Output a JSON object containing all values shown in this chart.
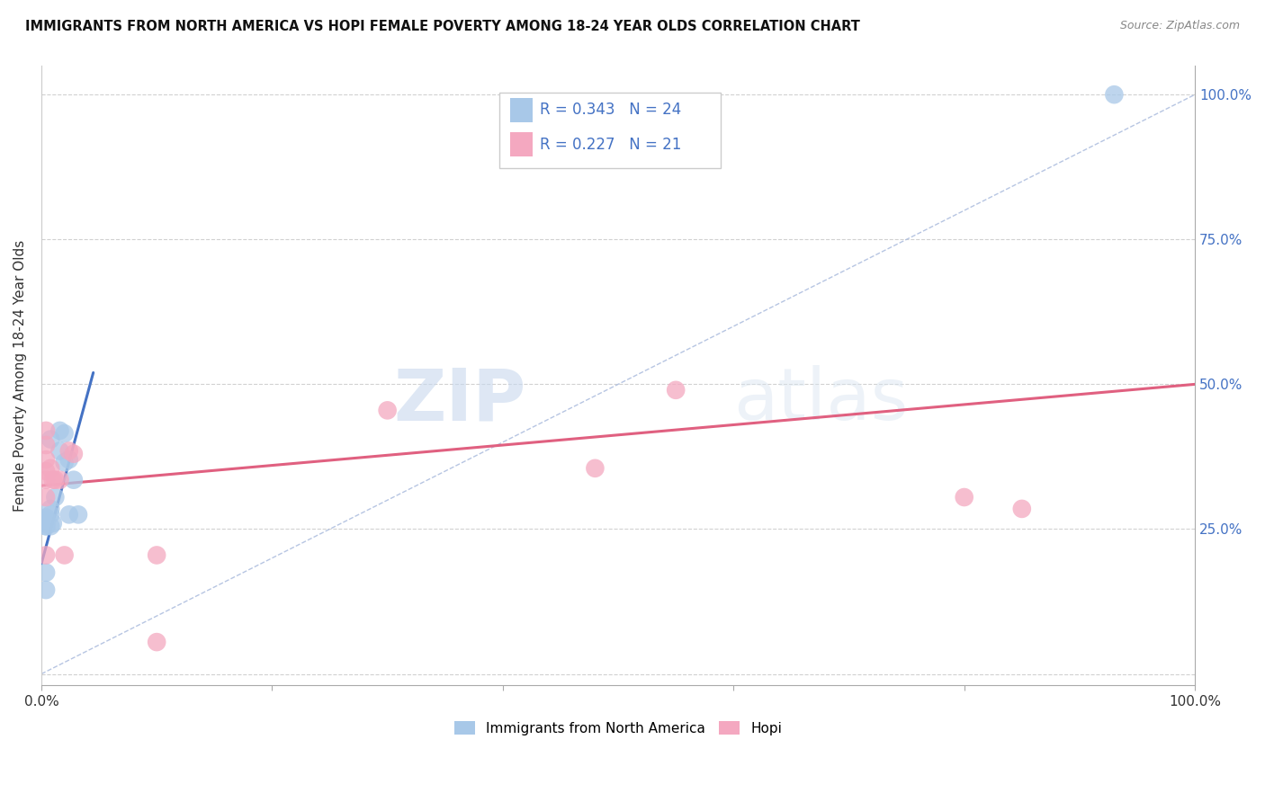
{
  "title": "IMMIGRANTS FROM NORTH AMERICA VS HOPI FEMALE POVERTY AMONG 18-24 YEAR OLDS CORRELATION CHART",
  "source": "Source: ZipAtlas.com",
  "ylabel": "Female Poverty Among 18-24 Year Olds",
  "legend_blue_label": "Immigrants from North America",
  "legend_pink_label": "Hopi",
  "watermark_zip": "ZIP",
  "watermark_atlas": "atlas",
  "blue_color": "#a8c8e8",
  "pink_color": "#f4a8c0",
  "blue_line_color": "#4472c4",
  "pink_line_color": "#e06080",
  "diag_line_color": "#aabbdd",
  "text_color_blue": "#4472c4",
  "r_blue": "0.343",
  "n_blue": "24",
  "r_pink": "0.227",
  "n_pink": "21",
  "blue_scatter_x": [
    0.008,
    0.008,
    0.004,
    0.004,
    0.004,
    0.008,
    0.01,
    0.012,
    0.016,
    0.02,
    0.008,
    0.016,
    0.02,
    0.024,
    0.028,
    0.024,
    0.032,
    0.004,
    0.004,
    0.004,
    0.004,
    0.004,
    0.004,
    0.93
  ],
  "blue_scatter_y": [
    0.285,
    0.275,
    0.265,
    0.26,
    0.255,
    0.255,
    0.26,
    0.305,
    0.385,
    0.415,
    0.405,
    0.42,
    0.365,
    0.37,
    0.335,
    0.275,
    0.275,
    0.175,
    0.145,
    0.27,
    0.265,
    0.26,
    0.255,
    1.0
  ],
  "pink_scatter_x": [
    0.004,
    0.004,
    0.004,
    0.004,
    0.004,
    0.004,
    0.004,
    0.008,
    0.01,
    0.012,
    0.016,
    0.02,
    0.024,
    0.028,
    0.3,
    0.8,
    0.85,
    0.1,
    0.1,
    0.55,
    0.48
  ],
  "pink_scatter_y": [
    0.42,
    0.395,
    0.37,
    0.35,
    0.335,
    0.305,
    0.205,
    0.355,
    0.335,
    0.335,
    0.335,
    0.205,
    0.385,
    0.38,
    0.455,
    0.305,
    0.285,
    0.205,
    0.055,
    0.49,
    0.355
  ],
  "blue_line_x": [
    0.0,
    0.045
  ],
  "blue_line_y": [
    0.19,
    0.52
  ],
  "pink_line_x": [
    0.0,
    1.0
  ],
  "pink_line_y": [
    0.325,
    0.5
  ],
  "diag_line_x": [
    0.0,
    1.0
  ],
  "diag_line_y": [
    0.0,
    1.0
  ],
  "xlim": [
    0.0,
    1.0
  ],
  "ylim": [
    -0.02,
    1.05
  ]
}
